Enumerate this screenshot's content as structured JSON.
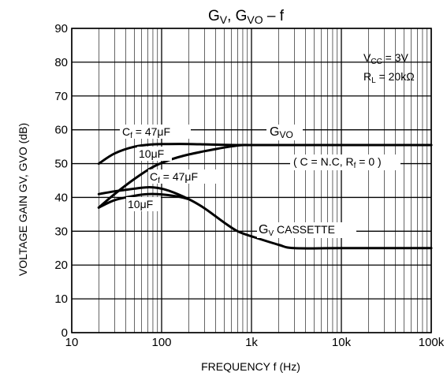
{
  "chart_data": {
    "type": "line",
    "title": {
      "main": "G",
      "sub1": "V",
      "mid": ", G",
      "sub2": "VO",
      "tail": "  –  f"
    },
    "xlabel": "FREQUENCY   f   (Hz)",
    "ylabel": "VOLTAGE GAIN   GV, GVO   (dB)",
    "x_scale": "log",
    "xlim": [
      10,
      100000
    ],
    "ylim": [
      0,
      90
    ],
    "grid": true,
    "x_ticks": [
      {
        "v": 10,
        "label": "10"
      },
      {
        "v": 100,
        "label": "100"
      },
      {
        "v": 1000,
        "label": "1k"
      },
      {
        "v": 10000,
        "label": "10k"
      },
      {
        "v": 100000,
        "label": "100k"
      }
    ],
    "y_ticks": [
      0,
      10,
      20,
      30,
      40,
      50,
      60,
      70,
      80,
      90
    ],
    "conditions": {
      "vcc": {
        "a": "V",
        "sub": "CC",
        "b": " = 3V"
      },
      "rl": {
        "a": "R",
        "sub": "L",
        "b": " = 20kΩ"
      }
    },
    "series": [
      {
        "x": [
          20,
          30,
          50,
          80,
          120,
          200,
          400,
          700,
          1000,
          3000,
          10000,
          100000
        ],
        "y": [
          50,
          53,
          55,
          55.7,
          55.8,
          55.8,
          55.6,
          55.5,
          55.5,
          55.5,
          55.5,
          55.5
        ]
      },
      {
        "x": [
          20,
          30,
          50,
          80,
          120,
          200,
          400,
          600,
          800,
          1000,
          3000,
          100000
        ],
        "y": [
          37,
          41,
          45.5,
          49,
          51,
          52.7,
          54.3,
          55.1,
          55.5,
          55.5,
          55.5,
          55.5
        ]
      },
      {
        "x": [
          20,
          30,
          50,
          70,
          90,
          120,
          200,
          300,
          500,
          700,
          1000,
          2000,
          3000,
          10000,
          100000
        ],
        "y": [
          41,
          41.8,
          42.6,
          43,
          42.8,
          42,
          39.5,
          36.8,
          32.5,
          30,
          28.5,
          26,
          25,
          25,
          25
        ]
      },
      {
        "x": [
          20,
          30,
          50,
          70,
          100,
          150,
          200
        ],
        "y": [
          37,
          39.2,
          40.5,
          41,
          40.9,
          40.3,
          39.5
        ]
      }
    ],
    "annotations": {
      "cf47_vo": {
        "a": "C",
        "sub": "f",
        "b": " = 47μF"
      },
      "uf10_vo": "10μF",
      "cf47_v": {
        "a": "C",
        "sub": "f",
        "b": " = 47μF"
      },
      "uf10_v": "10μF",
      "gvo": {
        "a": "G",
        "sub": "VO"
      },
      "cond": {
        "a": "( C = N.C,  R",
        "sub": "f",
        "b": " = 0 )"
      },
      "gv": {
        "a": "G",
        "sub": "V",
        "b": "  CASSETTE"
      }
    }
  }
}
